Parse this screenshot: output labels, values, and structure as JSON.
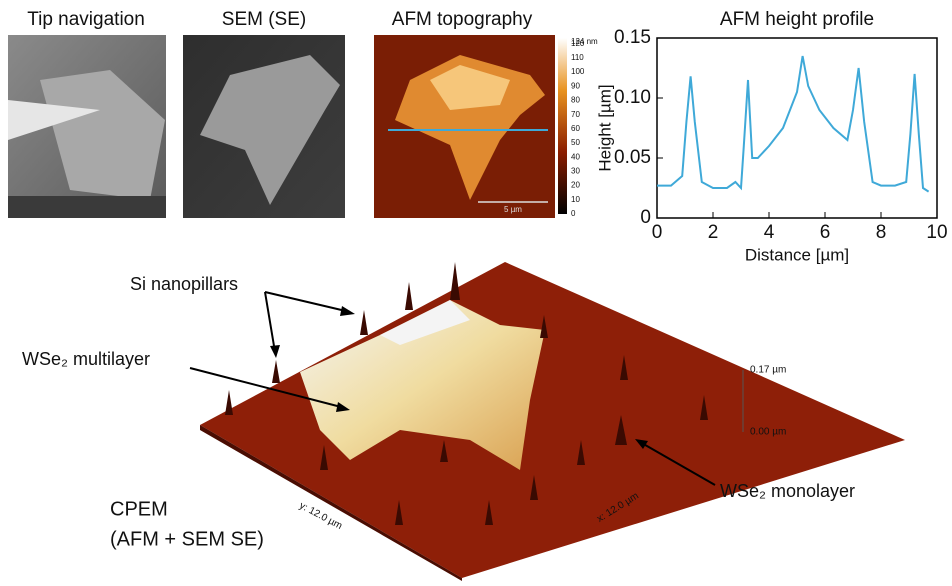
{
  "panels": {
    "tip_title": "Tip navigation",
    "sem_title": "SEM (SE)",
    "afm_title": "AFM topography"
  },
  "colorbar": {
    "top_label": "124 nm",
    "max": 124,
    "ticks": [
      0,
      10,
      20,
      30,
      40,
      50,
      60,
      70,
      80,
      90,
      100,
      110,
      120
    ]
  },
  "scale_bar": "5 µm",
  "chart_data": {
    "type": "line",
    "title": "AFM height profile",
    "x_label": "Distance [µm]",
    "y_label": "Height [µm]",
    "xlim": [
      0,
      10
    ],
    "ylim": [
      0,
      0.15
    ],
    "xticks": [
      0,
      2,
      4,
      6,
      8,
      10
    ],
    "yticks": [
      0,
      0.05,
      {
        "value": 0.1,
        "label": "0.10"
      },
      0.15
    ],
    "series": [
      {
        "color": "#3fa9d8",
        "x": [
          0,
          0.5,
          0.9,
          1.05,
          1.2,
          1.35,
          1.6,
          2.0,
          2.5,
          2.8,
          3.0,
          3.1,
          3.25,
          3.4,
          3.6,
          4.0,
          4.5,
          5.0,
          5.2,
          5.4,
          5.8,
          6.3,
          6.8,
          7.0,
          7.2,
          7.4,
          7.7,
          8.0,
          8.5,
          8.9,
          9.05,
          9.2,
          9.35,
          9.5,
          9.7
        ],
        "values": [
          0.027,
          0.027,
          0.035,
          0.08,
          0.118,
          0.08,
          0.03,
          0.025,
          0.025,
          0.03,
          0.025,
          0.06,
          0.115,
          0.05,
          0.05,
          0.06,
          0.075,
          0.105,
          0.135,
          0.11,
          0.09,
          0.075,
          0.065,
          0.09,
          0.125,
          0.08,
          0.03,
          0.027,
          0.027,
          0.03,
          0.07,
          0.12,
          0.07,
          0.025,
          0.022
        ]
      }
    ]
  },
  "render": {
    "si_nanopillars": "Si nanopillars",
    "multilayer": "WSe₂ multilayer",
    "monolayer": "WSe₂ monolayer",
    "z_top": "0.17 µm",
    "z_bottom": "0.00 µm",
    "y_axis": "y: 12.0 µm",
    "x_axis": "x: 12.0 µm",
    "caption_1": "CPEM",
    "caption_2": "(AFM + SEM SE)"
  }
}
